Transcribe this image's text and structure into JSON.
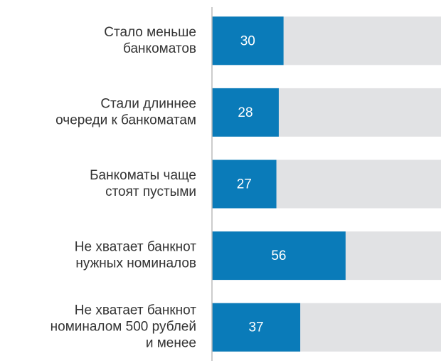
{
  "chart_data": {
    "type": "barh",
    "categories": [
      [
        "Стало меньше",
        "банкоматов"
      ],
      [
        "Стали длиннее",
        "очереди к банкоматам"
      ],
      [
        "Банкоматы чаще",
        "стоят пустыми"
      ],
      [
        "Не хватает банкнот",
        "нужных номиналов"
      ],
      [
        "Не хватает банкнот",
        "номиналом 500 рублей",
        "и менее"
      ]
    ],
    "values": [
      30,
      28,
      27,
      56,
      37
    ],
    "color": "#0a7bb9",
    "background_color": "#e1e2e4",
    "xlim": [
      0,
      96
    ]
  }
}
